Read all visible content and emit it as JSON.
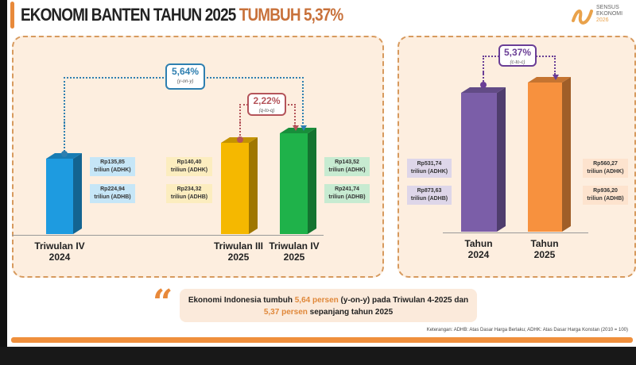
{
  "header": {
    "title_main": "EKONOMI BANTEN TAHUN 2025",
    "title_highlight": "TUMBUH 5,37%",
    "logo": {
      "line1": "SENSUS",
      "line2": "EKONOMI",
      "line3": "2026"
    }
  },
  "quarterly": {
    "bars": [
      {
        "label1": "Triwulan IV",
        "label2": "2024",
        "adhk": "Rp135,85",
        "adhk_unit": "triliun (ADHK)",
        "adhb": "Rp224,94",
        "adhb_unit": "triliun (ADHB)",
        "color": "#1e9be0"
      },
      {
        "label1": "Triwulan III",
        "label2": "2025",
        "adhk": "Rp140,40",
        "adhk_unit": "triliun (ADHK)",
        "adhb": "Rp234,32",
        "adhb_unit": "triliun (ADHB)",
        "color": "#f5b800"
      },
      {
        "label1": "Triwulan IV",
        "label2": "2025",
        "adhk": "Rp143,52",
        "adhk_unit": "triliun (ADHK)",
        "adhb": "Rp241,74",
        "adhb_unit": "triliun (ADHB)",
        "color": "#1fb24a"
      }
    ],
    "yoy": {
      "value": "5,64%",
      "label": "(y-on-y)",
      "color": "#2e7fb0"
    },
    "qtq": {
      "value": "2,22%",
      "label": "(q-to-q)",
      "color": "#b4545a"
    }
  },
  "annual": {
    "bars": [
      {
        "label1": "Tahun",
        "label2": "2024",
        "adhk": "Rp531,74",
        "adhk_unit": "triliun (ADHK)",
        "adhb": "Rp873,63",
        "adhb_unit": "triliun (ADHB)",
        "color": "#7b5ea8"
      },
      {
        "label1": "Tahun",
        "label2": "2025",
        "adhk": "Rp560,27",
        "adhk_unit": "triliun (ADHK)",
        "adhb": "Rp936,20",
        "adhb_unit": "triliun (ADHB)",
        "color": "#f7913e"
      }
    ],
    "ctc": {
      "value": "5,37%",
      "label": "(c-to-c)",
      "color": "#6a3e96"
    }
  },
  "quote": {
    "p1": "Ekonomi Indonesia tumbuh ",
    "h1": "5,64 persen",
    "p2": " (y-on-y)  pada Triwulan 4-2025 dan",
    "h2": "5,37 persen",
    "p3": " sepanjang tahun 2025"
  },
  "note": "Keterangan: ADHB: Atas Dasar Harga Berlaku; ADHK: Atas Dasar Harga Konstan (2010 = 100)"
}
